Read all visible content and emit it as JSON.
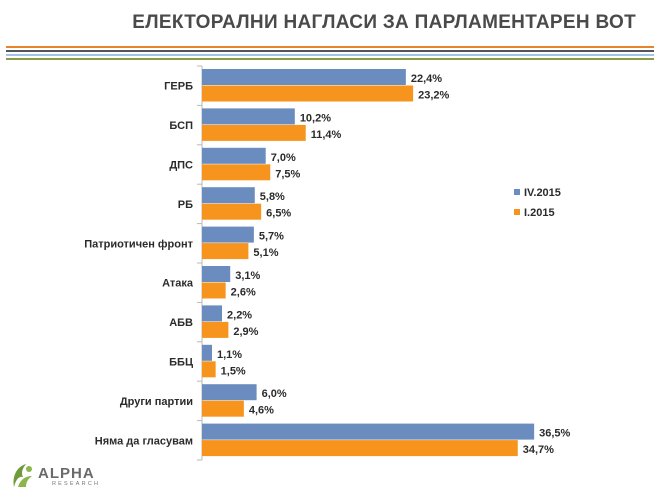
{
  "chart_data": {
    "type": "bar",
    "orientation": "horizontal",
    "title": "ЕЛЕКТОРАЛНИ НАГЛАСИ ЗА ПАРЛАМЕНТАРЕН ВОТ",
    "categories": [
      "ГЕРБ",
      "БСП",
      "ДПС",
      "РБ",
      "Патриотичен фронт",
      "Атака",
      "АБВ",
      "ББЦ",
      "Други партии",
      "Няма да гласувам"
    ],
    "series": [
      {
        "name": "IV.2015",
        "color": "#6b8cbe",
        "values": [
          22.4,
          10.2,
          7.0,
          5.8,
          5.7,
          3.1,
          2.2,
          1.1,
          6.0,
          36.5
        ],
        "labels": [
          "22,4%",
          "10,2%",
          "7,0%",
          "5,8%",
          "5,7%",
          "3,1%",
          "2,2%",
          "1,1%",
          "6,0%",
          "36,5%"
        ]
      },
      {
        "name": "I.2015",
        "color": "#f7941e",
        "values": [
          23.2,
          11.4,
          7.5,
          6.5,
          5.1,
          2.6,
          2.9,
          1.5,
          4.6,
          34.7
        ],
        "labels": [
          "23,2%",
          "11,4%",
          "7,5%",
          "6,5%",
          "5,1%",
          "2,6%",
          "2,9%",
          "1,5%",
          "4,6%",
          "34,7%"
        ]
      }
    ],
    "legend_position": "right",
    "grid": false,
    "xlim": [
      0,
      40
    ]
  },
  "colors": {
    "stripes": [
      "#e8852c",
      "#555555",
      "#a3c4ea",
      "#8a9d42"
    ],
    "axis": "#b9b9b9"
  },
  "logo": {
    "text": "ALPHA",
    "subtext": "RESEARCH",
    "icon": "alpha-research-logo-icon"
  }
}
